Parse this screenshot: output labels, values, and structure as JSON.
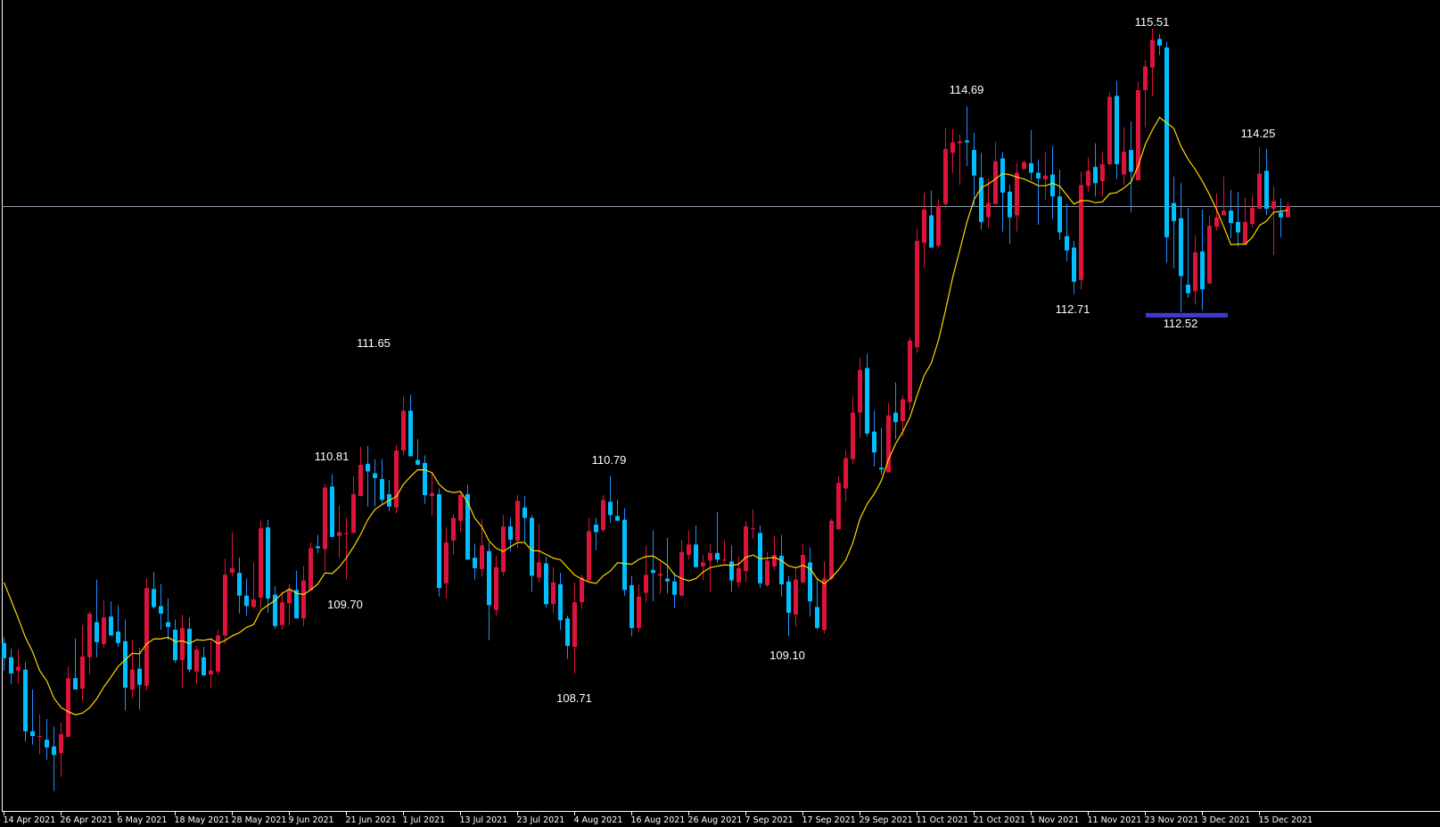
{
  "chart_data": {
    "type": "candlestick",
    "title": "",
    "xlabel": "",
    "ylabel": "",
    "ylim": [
      107.34,
      115.81
    ],
    "grid": false,
    "legend": "none",
    "colors": {
      "background": "#000000",
      "up_candle": "#DC143C",
      "down_candle_body": "#00BFFF",
      "down_candle_wick": "#1E90FF",
      "moving_average": "#FFD700",
      "price_line": "#8F9BAB",
      "support_marker": "#3C3CD2",
      "axis": "#FFFFFF",
      "text": "#FFFFFF"
    },
    "current_price": 113.64,
    "x_tick_labels": [
      "14 Apr 2021",
      "26 Apr 2021",
      "6 May 2021",
      "18 May 2021",
      "28 May 2021",
      "9 Jun 2021",
      "21 Jun 2021",
      "1 Jul 2021",
      "13 Jul 2021",
      "23 Jul 2021",
      "4 Aug 2021",
      "16 Aug 2021",
      "26 Aug 2021",
      "7 Sep 2021",
      "17 Sep 2021",
      "29 Sep 2021",
      "11 Oct 2021",
      "21 Oct 2021",
      "1 Nov 2021",
      "11 Nov 2021",
      "23 Nov 2021",
      "3 Dec 2021",
      "15 Dec 2021"
    ],
    "x_tick_every_bars": 8,
    "annotations": [
      {
        "text": "115.51"
      },
      {
        "text": "114.69"
      },
      {
        "text": "114.25"
      },
      {
        "text": "112.71"
      },
      {
        "text": "112.52"
      },
      {
        "text": "111.65"
      },
      {
        "text": "110.81"
      },
      {
        "text": "110.79"
      },
      {
        "text": "109.70"
      },
      {
        "text": "109.10"
      },
      {
        "text": "108.71"
      }
    ],
    "support_level": 112.52,
    "moving_average": {
      "type": "SMA",
      "period": 10,
      "leading_values": [
        109.67,
        109.48,
        109.29,
        109.09,
        108.94,
        108.74,
        108.63,
        108.45,
        108.35
      ]
    },
    "ohlc_columns": [
      "open",
      "high",
      "low",
      "close"
    ],
    "ohlc": [
      [
        109.03,
        109.09,
        108.74,
        108.87
      ],
      [
        108.88,
        108.97,
        108.6,
        108.71
      ],
      [
        108.74,
        108.96,
        108.6,
        108.78
      ],
      [
        108.75,
        108.83,
        107.99,
        108.1
      ],
      [
        108.1,
        108.54,
        107.96,
        108.05
      ],
      [
        108.04,
        108.28,
        107.86,
        108.05
      ],
      [
        108.01,
        108.23,
        107.8,
        107.93
      ],
      [
        107.94,
        108.15,
        107.47,
        107.85
      ],
      [
        107.87,
        108.19,
        107.62,
        108.07
      ],
      [
        108.04,
        108.78,
        108.04,
        108.66
      ],
      [
        108.66,
        109.08,
        108.54,
        108.54
      ],
      [
        108.55,
        109.22,
        108.42,
        108.89
      ],
      [
        108.88,
        109.36,
        108.7,
        109.34
      ],
      [
        109.25,
        109.7,
        108.88,
        109.04
      ],
      [
        109.02,
        109.48,
        108.98,
        109.3
      ],
      [
        109.31,
        109.47,
        109.11,
        109.11
      ],
      [
        109.15,
        109.43,
        108.99,
        109.03
      ],
      [
        109.05,
        109.28,
        108.32,
        108.56
      ],
      [
        108.54,
        109.06,
        108.45,
        108.75
      ],
      [
        108.76,
        108.98,
        108.33,
        108.59
      ],
      [
        108.58,
        109.71,
        108.53,
        109.61
      ],
      [
        109.6,
        109.78,
        109.39,
        109.41
      ],
      [
        109.42,
        109.65,
        109.17,
        109.34
      ],
      [
        109.25,
        109.5,
        109.06,
        109.2
      ],
      [
        109.17,
        109.28,
        108.82,
        108.85
      ],
      [
        108.85,
        109.33,
        108.56,
        109.19
      ],
      [
        109.18,
        109.3,
        108.72,
        108.75
      ],
      [
        108.73,
        109.0,
        108.6,
        108.96
      ],
      [
        108.88,
        108.99,
        108.68,
        108.69
      ],
      [
        108.7,
        109.08,
        108.55,
        108.74
      ],
      [
        108.73,
        109.17,
        108.69,
        109.11
      ],
      [
        109.11,
        109.92,
        109.02,
        109.75
      ],
      [
        109.77,
        110.2,
        109.73,
        109.82
      ],
      [
        109.77,
        109.93,
        109.34,
        109.53
      ],
      [
        109.53,
        109.71,
        109.32,
        109.42
      ],
      [
        109.41,
        109.88,
        109.39,
        109.49
      ],
      [
        109.51,
        110.32,
        109.39,
        110.24
      ],
      [
        110.25,
        110.33,
        109.35,
        109.5
      ],
      [
        109.54,
        109.63,
        109.18,
        109.21
      ],
      [
        109.22,
        109.57,
        109.17,
        109.46
      ],
      [
        109.45,
        109.65,
        109.22,
        109.59
      ],
      [
        109.59,
        109.79,
        109.29,
        109.29
      ],
      [
        109.29,
        109.84,
        109.21,
        109.69
      ],
      [
        109.59,
        110.09,
        109.59,
        110.03
      ],
      [
        110.05,
        110.17,
        109.98,
        110.03
      ],
      [
        110.02,
        110.71,
        109.79,
        110.67
      ],
      [
        110.68,
        110.81,
        110.15,
        110.15
      ],
      [
        110.16,
        110.48,
        109.93,
        110.2
      ],
      [
        110.19,
        110.35,
        109.7,
        110.19
      ],
      [
        110.19,
        110.79,
        110.19,
        110.6
      ],
      [
        110.58,
        111.1,
        110.58,
        110.91
      ],
      [
        110.92,
        111.11,
        110.47,
        110.84
      ],
      [
        110.82,
        110.97,
        110.47,
        110.77
      ],
      [
        110.76,
        110.97,
        110.5,
        110.54
      ],
      [
        110.6,
        110.75,
        110.42,
        110.47
      ],
      [
        110.46,
        111.12,
        110.4,
        111.06
      ],
      [
        111.06,
        111.63,
        111.01,
        111.48
      ],
      [
        111.48,
        111.65,
        111.0,
        111.0
      ],
      [
        110.96,
        111.18,
        110.91,
        110.91
      ],
      [
        110.93,
        111.01,
        110.5,
        110.59
      ],
      [
        110.58,
        110.83,
        110.38,
        110.61
      ],
      [
        110.6,
        110.66,
        109.52,
        109.61
      ],
      [
        109.66,
        110.25,
        109.5,
        110.09
      ],
      [
        110.11,
        110.39,
        109.96,
        110.35
      ],
      [
        110.32,
        110.62,
        110.2,
        110.59
      ],
      [
        110.6,
        110.7,
        109.91,
        109.91
      ],
      [
        109.93,
        110.08,
        109.7,
        109.82
      ],
      [
        109.81,
        110.34,
        109.73,
        110.06
      ],
      [
        110.0,
        110.09,
        109.06,
        109.43
      ],
      [
        109.38,
        109.95,
        109.32,
        109.83
      ],
      [
        109.78,
        110.38,
        109.74,
        110.26
      ],
      [
        110.26,
        110.35,
        110.0,
        110.12
      ],
      [
        110.11,
        110.59,
        110.03,
        110.53
      ],
      [
        110.46,
        110.58,
        110.1,
        110.35
      ],
      [
        110.35,
        110.38,
        109.57,
        109.74
      ],
      [
        109.72,
        110.29,
        109.67,
        109.88
      ],
      [
        109.87,
        109.94,
        109.4,
        109.44
      ],
      [
        109.44,
        109.83,
        109.35,
        109.67
      ],
      [
        109.65,
        109.77,
        109.17,
        109.27
      ],
      [
        109.29,
        109.32,
        108.86,
        109.0
      ],
      [
        108.99,
        109.67,
        108.71,
        109.46
      ],
      [
        109.46,
        109.75,
        109.39,
        109.72
      ],
      [
        109.69,
        110.35,
        109.69,
        110.21
      ],
      [
        110.28,
        110.35,
        110.01,
        110.2
      ],
      [
        110.22,
        110.59,
        110.2,
        110.54
      ],
      [
        110.52,
        110.79,
        110.3,
        110.38
      ],
      [
        110.37,
        110.54,
        110.32,
        110.32
      ],
      [
        110.33,
        110.45,
        109.53,
        109.59
      ],
      [
        109.64,
        109.74,
        109.1,
        109.19
      ],
      [
        109.19,
        109.65,
        109.15,
        109.52
      ],
      [
        109.56,
        110.06,
        109.46,
        109.75
      ],
      [
        109.8,
        110.22,
        109.47,
        109.77
      ],
      [
        109.74,
        109.88,
        109.55,
        109.76
      ],
      [
        109.71,
        110.14,
        109.55,
        109.68
      ],
      [
        109.68,
        109.77,
        109.4,
        109.54
      ],
      [
        109.53,
        110.12,
        109.53,
        109.99
      ],
      [
        109.96,
        110.22,
        109.91,
        110.07
      ],
      [
        110.07,
        110.27,
        109.83,
        109.83
      ],
      [
        109.84,
        109.96,
        109.69,
        109.88
      ],
      [
        109.9,
        110.07,
        109.57,
        109.98
      ],
      [
        109.98,
        110.41,
        109.87,
        109.91
      ],
      [
        109.9,
        110.11,
        109.88,
        109.91
      ],
      [
        109.89,
        110.06,
        109.57,
        109.69
      ],
      [
        109.67,
        109.94,
        109.62,
        109.82
      ],
      [
        109.79,
        110.32,
        109.67,
        110.26
      ],
      [
        110.23,
        110.44,
        110.13,
        110.24
      ],
      [
        110.19,
        110.27,
        109.61,
        109.66
      ],
      [
        109.64,
        109.99,
        109.62,
        109.9
      ],
      [
        109.84,
        110.16,
        109.8,
        109.96
      ],
      [
        109.95,
        110.17,
        109.52,
        109.65
      ],
      [
        109.68,
        109.74,
        109.1,
        109.35
      ],
      [
        109.33,
        109.81,
        109.2,
        109.7
      ],
      [
        109.67,
        110.07,
        109.65,
        109.96
      ],
      [
        109.88,
        110.04,
        109.31,
        109.47
      ],
      [
        109.41,
        109.71,
        109.17,
        109.19
      ],
      [
        109.17,
        109.89,
        109.13,
        109.71
      ],
      [
        109.71,
        110.34,
        109.69,
        110.32
      ],
      [
        110.23,
        110.79,
        110.23,
        110.72
      ],
      [
        110.66,
        111.06,
        110.52,
        110.98
      ],
      [
        110.97,
        111.63,
        110.92,
        111.46
      ],
      [
        111.46,
        112.04,
        111.19,
        111.91
      ],
      [
        111.93,
        112.08,
        111.21,
        111.24
      ],
      [
        111.26,
        111.48,
        110.89,
        111.04
      ],
      [
        110.88,
        111.3,
        110.81,
        110.86
      ],
      [
        110.83,
        111.56,
        110.83,
        111.43
      ],
      [
        111.46,
        111.78,
        111.18,
        111.36
      ],
      [
        111.37,
        111.64,
        111.21,
        111.6
      ],
      [
        111.57,
        112.25,
        111.49,
        112.22
      ],
      [
        112.15,
        113.4,
        112.09,
        113.27
      ],
      [
        113.25,
        113.78,
        112.99,
        113.6
      ],
      [
        113.54,
        113.8,
        113.2,
        113.2
      ],
      [
        113.22,
        113.71,
        113.2,
        113.64
      ],
      [
        113.66,
        114.46,
        113.61,
        114.24
      ],
      [
        114.2,
        114.45,
        113.99,
        114.31
      ],
      [
        114.3,
        114.39,
        113.86,
        114.32
      ],
      [
        114.33,
        114.69,
        114.06,
        114.31
      ],
      [
        114.23,
        114.41,
        113.63,
        113.96
      ],
      [
        113.94,
        114.2,
        113.39,
        113.47
      ],
      [
        113.52,
        113.92,
        113.41,
        113.67
      ],
      [
        113.66,
        114.31,
        113.66,
        114.11
      ],
      [
        114.14,
        114.21,
        113.37,
        113.78
      ],
      [
        113.79,
        113.86,
        113.24,
        113.52
      ],
      [
        113.54,
        114.09,
        113.37,
        113.99
      ],
      [
        114.03,
        114.12,
        114.02,
        114.1
      ],
      [
        114.09,
        114.44,
        113.91,
        113.99
      ],
      [
        113.99,
        114.13,
        113.44,
        113.93
      ],
      [
        113.92,
        114.21,
        113.7,
        113.96
      ],
      [
        113.97,
        114.27,
        113.5,
        113.74
      ],
      [
        113.74,
        114.02,
        113.28,
        113.36
      ],
      [
        113.32,
        113.66,
        113.06,
        113.17
      ],
      [
        113.2,
        113.27,
        112.71,
        112.84
      ],
      [
        112.86,
        114.0,
        112.76,
        113.86
      ],
      [
        113.85,
        114.15,
        113.79,
        114.01
      ],
      [
        114.05,
        114.3,
        113.74,
        113.88
      ],
      [
        113.9,
        114.21,
        113.74,
        114.08
      ],
      [
        114.08,
        114.84,
        114.07,
        114.79
      ],
      [
        114.8,
        114.96,
        113.92,
        114.08
      ],
      [
        113.97,
        114.47,
        113.86,
        114.21
      ],
      [
        114.23,
        114.53,
        113.57,
        114.0
      ],
      [
        113.91,
        114.95,
        113.91,
        114.86
      ],
      [
        114.86,
        115.18,
        114.47,
        115.11
      ],
      [
        115.1,
        115.51,
        114.8,
        115.39
      ],
      [
        115.4,
        115.45,
        115.23,
        115.33
      ],
      [
        115.31,
        115.37,
        113.04,
        113.31
      ],
      [
        113.67,
        113.95,
        112.98,
        113.48
      ],
      [
        113.51,
        113.88,
        112.52,
        112.9
      ],
      [
        112.81,
        113.62,
        112.67,
        112.72
      ],
      [
        112.74,
        113.33,
        112.6,
        113.15
      ],
      [
        113.16,
        113.6,
        112.54,
        112.76
      ],
      [
        112.82,
        113.54,
        112.82,
        113.43
      ],
      [
        113.42,
        113.77,
        113.38,
        113.52
      ],
      [
        113.54,
        113.95,
        113.54,
        113.59
      ],
      [
        113.59,
        113.81,
        113.3,
        113.46
      ],
      [
        113.47,
        113.79,
        113.21,
        113.36
      ],
      [
        113.23,
        113.73,
        113.23,
        113.47
      ],
      [
        113.45,
        113.75,
        113.41,
        113.62
      ],
      [
        113.61,
        114.26,
        113.61,
        113.98
      ],
      [
        114.01,
        114.24,
        113.54,
        113.61
      ],
      [
        113.61,
        113.85,
        113.12,
        113.69
      ],
      [
        113.57,
        113.72,
        113.31,
        113.52
      ],
      [
        113.52,
        113.68,
        113.52,
        113.64
      ]
    ]
  }
}
